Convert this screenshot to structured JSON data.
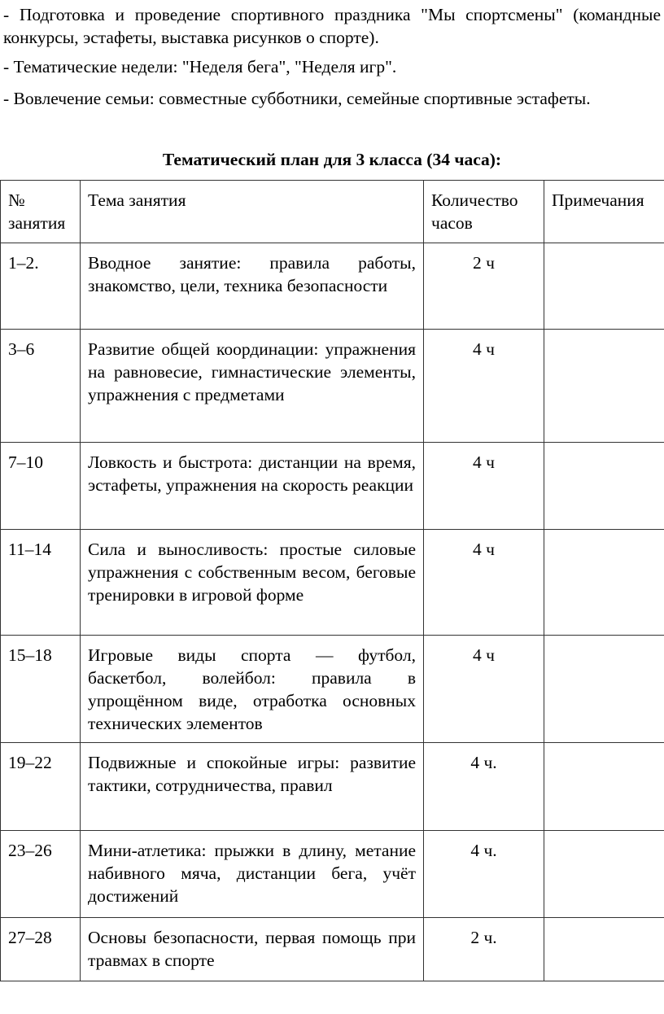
{
  "paragraphs": [
    "- Подготовка и проведение спортивного праздника \"Мы спортсмены\" (командные конкурсы, эстафеты, выставка рисунков о спорте).",
    "- Тематические недели: \"Неделя бега\", \"Неделя игр\".",
    "- Вовлечение семьи: совместные субботники, семейные спортивные эстафеты."
  ],
  "title": "Тематический план для 3 класса (34 часа):",
  "table": {
    "headers": [
      "№ занятия",
      "Тема занятия",
      "Количество часов",
      "Примечания"
    ],
    "rows": [
      {
        "num": "1–2.",
        "topic": "Вводное занятие: правила работы, знакомство, цели, техника безопасности",
        "hours": "2 ч",
        "notes": ""
      },
      {
        "num": "3–6",
        "topic": "Развитие общей координации: упражнения на равновесие, гимнастические элементы, упражнения с предметами",
        "hours": "4 ч",
        "notes": ""
      },
      {
        "num": "7–10",
        "topic": "Ловкость и быстрота: дистанции на время, эстафеты, упражнения на скорость реакции",
        "hours": "4 ч",
        "notes": ""
      },
      {
        "num": "11–14",
        "topic": "Сила и выносливость: простые силовые упражнения с собственным весом, беговые тренировки в игровой форме",
        "hours": "4 ч",
        "notes": ""
      },
      {
        "num": "15–18",
        "topic": "Игровые виды спорта — футбол, баскетбол, волейбол: правила в упрощённом виде, отработка основных технических элементов",
        "hours": "4 ч",
        "notes": ""
      },
      {
        "num": "19–22",
        "topic": "Подвижные и спокойные игры: развитие тактики, сотрудничества, правил",
        "hours": "4 ч.",
        "notes": ""
      },
      {
        "num": "23–26",
        "topic": "Мини-атлетика: прыжки в длину, метание набивного мяча, дистанции бега, учёт достижений",
        "hours": "4 ч.",
        "notes": ""
      },
      {
        "num": "27–28",
        "topic": "Основы безопасности, первая помощь при травмах в спорте",
        "hours": "2 ч.",
        "notes": ""
      }
    ]
  }
}
